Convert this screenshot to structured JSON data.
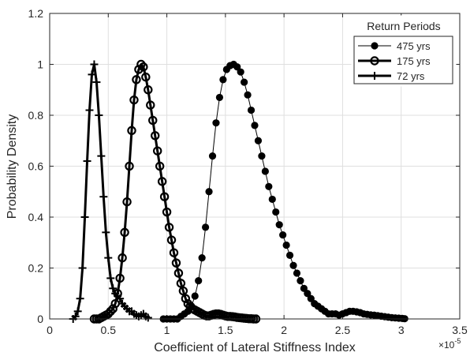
{
  "chart_data": {
    "type": "line",
    "xlabel": "Coefficient of Lateral Stiffness Index",
    "ylabel": "Probability Density",
    "x_exponent_label": "×10",
    "x_exponent_power": "-5",
    "x_ticks": [
      "0",
      "0.5",
      "1",
      "1.5",
      "2",
      "2.5",
      "3",
      "3.5"
    ],
    "y_ticks": [
      "0",
      "0.2",
      "0.4",
      "0.6",
      "0.8",
      "1",
      "1.2"
    ],
    "xlim": [
      0,
      3.5
    ],
    "ylim": [
      0,
      1.2
    ],
    "grid": true,
    "legend": {
      "title": "Return Periods",
      "position": "top-right"
    },
    "colors": {
      "series": "#000000",
      "grid": "#dfdfdf",
      "axis": "#262626"
    },
    "series": [
      {
        "name": "475 yrs",
        "marker": "filled-circle",
        "x": [
          0.97,
          1.0,
          1.03,
          1.06,
          1.09,
          1.12,
          1.15,
          1.18,
          1.21,
          1.24,
          1.27,
          1.3,
          1.33,
          1.36,
          1.39,
          1.42,
          1.45,
          1.48,
          1.51,
          1.54,
          1.57,
          1.6,
          1.63,
          1.66,
          1.69,
          1.72,
          1.75,
          1.78,
          1.81,
          1.84,
          1.87,
          1.9,
          1.93,
          1.96,
          1.99,
          2.02,
          2.05,
          2.08,
          2.11,
          2.14,
          2.17,
          2.2,
          2.23,
          2.26,
          2.29,
          2.32,
          2.35,
          2.38,
          2.41,
          2.44,
          2.47,
          2.5,
          2.53,
          2.56,
          2.59,
          2.62,
          2.65,
          2.68,
          2.71,
          2.74,
          2.77,
          2.8,
          2.83,
          2.86,
          2.89,
          2.92,
          2.95,
          2.98,
          3.01,
          3.03
        ],
        "y": [
          0.0,
          0.0,
          0.0,
          0.0,
          0.0,
          0.01,
          0.02,
          0.03,
          0.05,
          0.09,
          0.15,
          0.24,
          0.36,
          0.5,
          0.64,
          0.77,
          0.87,
          0.94,
          0.98,
          0.995,
          1.0,
          0.99,
          0.97,
          0.93,
          0.88,
          0.82,
          0.76,
          0.7,
          0.64,
          0.58,
          0.52,
          0.47,
          0.42,
          0.37,
          0.33,
          0.29,
          0.25,
          0.21,
          0.18,
          0.15,
          0.12,
          0.1,
          0.08,
          0.06,
          0.05,
          0.04,
          0.03,
          0.02,
          0.02,
          0.02,
          0.015,
          0.02,
          0.025,
          0.03,
          0.03,
          0.028,
          0.025,
          0.02,
          0.018,
          0.016,
          0.015,
          0.013,
          0.011,
          0.009,
          0.007,
          0.005,
          0.004,
          0.003,
          0.002,
          0.001
        ]
      },
      {
        "name": "175 yrs",
        "marker": "open-circle",
        "x": [
          0.38,
          0.4,
          0.42,
          0.44,
          0.46,
          0.48,
          0.5,
          0.52,
          0.54,
          0.56,
          0.58,
          0.6,
          0.62,
          0.64,
          0.66,
          0.68,
          0.7,
          0.72,
          0.74,
          0.76,
          0.78,
          0.8,
          0.82,
          0.84,
          0.86,
          0.88,
          0.9,
          0.92,
          0.94,
          0.96,
          0.98,
          1.0,
          1.02,
          1.04,
          1.06,
          1.08,
          1.1,
          1.12,
          1.14,
          1.16,
          1.18,
          1.2,
          1.22,
          1.24,
          1.26,
          1.28,
          1.3,
          1.32,
          1.34,
          1.36,
          1.38,
          1.4,
          1.42,
          1.44,
          1.46,
          1.48,
          1.5,
          1.52,
          1.54,
          1.56,
          1.58,
          1.6,
          1.62,
          1.64,
          1.66,
          1.68,
          1.7,
          1.72,
          1.74,
          1.76
        ],
        "y": [
          0.0,
          0.0,
          0.0,
          0.005,
          0.01,
          0.015,
          0.02,
          0.03,
          0.04,
          0.06,
          0.1,
          0.16,
          0.24,
          0.34,
          0.46,
          0.6,
          0.74,
          0.86,
          0.94,
          0.98,
          1.0,
          0.99,
          0.95,
          0.9,
          0.84,
          0.78,
          0.72,
          0.66,
          0.6,
          0.54,
          0.48,
          0.42,
          0.36,
          0.31,
          0.26,
          0.22,
          0.18,
          0.14,
          0.11,
          0.08,
          0.06,
          0.05,
          0.04,
          0.035,
          0.03,
          0.025,
          0.02,
          0.015,
          0.012,
          0.012,
          0.015,
          0.018,
          0.02,
          0.02,
          0.018,
          0.015,
          0.012,
          0.01,
          0.01,
          0.009,
          0.008,
          0.006,
          0.005,
          0.004,
          0.003,
          0.002,
          0.001,
          0.001,
          0.0,
          0.0
        ]
      },
      {
        "name": "72 yrs",
        "marker": "plus",
        "x": [
          0.2,
          0.22,
          0.24,
          0.26,
          0.28,
          0.3,
          0.32,
          0.34,
          0.36,
          0.38,
          0.4,
          0.42,
          0.44,
          0.46,
          0.48,
          0.5,
          0.52,
          0.54,
          0.56,
          0.58,
          0.6,
          0.62,
          0.64,
          0.66,
          0.68,
          0.7,
          0.72,
          0.74,
          0.76,
          0.78,
          0.8,
          0.82,
          0.84
        ],
        "y": [
          0.0,
          0.01,
          0.03,
          0.08,
          0.2,
          0.4,
          0.62,
          0.82,
          0.96,
          1.0,
          0.93,
          0.8,
          0.64,
          0.48,
          0.34,
          0.24,
          0.16,
          0.12,
          0.1,
          0.09,
          0.08,
          0.06,
          0.05,
          0.04,
          0.03,
          0.03,
          0.02,
          0.015,
          0.01,
          0.015,
          0.02,
          0.01,
          0.005
        ]
      }
    ]
  }
}
